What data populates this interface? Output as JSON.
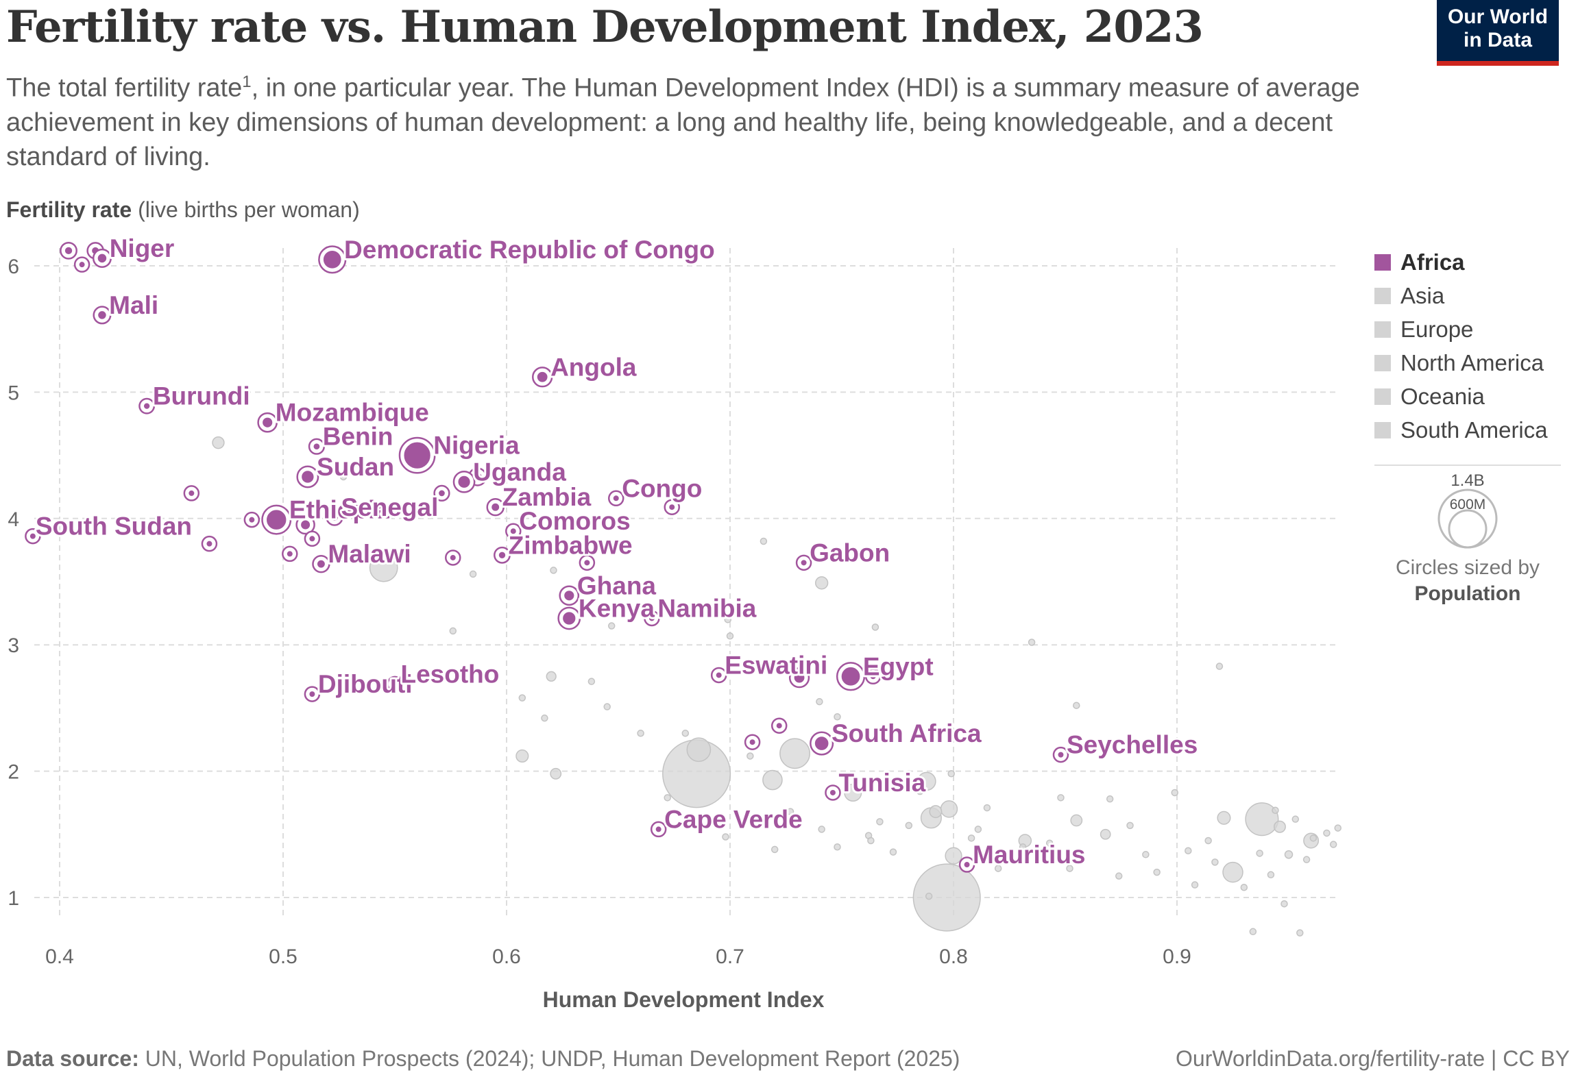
{
  "header": {
    "title": "Fertility rate vs. Human Development Index, 2023",
    "subtitle_before_sup": "The total fertility rate",
    "subtitle_sup": "1",
    "subtitle_after_sup": ", in one particular year. The Human Development Index (HDI) is a summary measure of average achievement in key dimensions of human development: a long and healthy life, being knowledgeable, and a decent standard of living.",
    "logo_line1": "Our World",
    "logo_line2": "in Data"
  },
  "axes": {
    "y_label_bold": "Fertility rate",
    "y_label_rest": " (live births per woman)",
    "x_label": "Human Development Index"
  },
  "legend": {
    "items": [
      {
        "label": "Africa",
        "active": true
      },
      {
        "label": "Asia",
        "active": false
      },
      {
        "label": "Europe",
        "active": false
      },
      {
        "label": "North America",
        "active": false
      },
      {
        "label": "Oceania",
        "active": false
      },
      {
        "label": "South America",
        "active": false
      }
    ],
    "size_large": "1.4B",
    "size_small": "600M",
    "size_caption": "Circles sized by",
    "size_caption_bold": "Population"
  },
  "footer": {
    "source_label": "Data source:",
    "source_text": " UN, World Population Prospects (2024); UNDP, Human Development Report (2025)",
    "credit": "OurWorldinData.org/fertility-rate | CC BY"
  },
  "colors": {
    "africa": "#a2559d",
    "other": "#d5d5d5",
    "grid": "#dddddd"
  },
  "chart_data": {
    "type": "scatter",
    "title": "Fertility rate vs. Human Development Index, 2023",
    "xlabel": "Human Development Index",
    "ylabel": "Fertility rate (live births per woman)",
    "xlim": [
      0.385,
      0.975
    ],
    "ylim": [
      0.7,
      6.25
    ],
    "x_ticks": [
      0.4,
      0.5,
      0.6,
      0.7,
      0.8,
      0.9
    ],
    "x_tick_labels": [
      "0.4",
      "0.5",
      "0.6",
      "0.7",
      "0.8",
      "0.9"
    ],
    "y_ticks": [
      1,
      2,
      3,
      4,
      5,
      6
    ],
    "y_tick_labels": [
      "1",
      "2",
      "3",
      "4",
      "5",
      "6"
    ],
    "africa_labeled": [
      {
        "name": "Niger",
        "hdi": 0.419,
        "fertility": 6.06,
        "pop": 27
      },
      {
        "name": "Mali",
        "hdi": 0.419,
        "fertility": 5.61,
        "pop": 23
      },
      {
        "name": "Democratic Republic of Congo",
        "hdi": 0.522,
        "fertility": 6.05,
        "pop": 105
      },
      {
        "name": "Angola",
        "hdi": 0.616,
        "fertility": 5.12,
        "pop": 37
      },
      {
        "name": "Burundi",
        "hdi": 0.439,
        "fertility": 4.89,
        "pop": 13
      },
      {
        "name": "Mozambique",
        "hdi": 0.493,
        "fertility": 4.76,
        "pop": 34
      },
      {
        "name": "Benin",
        "hdi": 0.515,
        "fertility": 4.57,
        "pop": 14
      },
      {
        "name": "Nigeria",
        "hdi": 0.56,
        "fertility": 4.5,
        "pop": 228
      },
      {
        "name": "Sudan",
        "hdi": 0.511,
        "fertility": 4.33,
        "pop": 50
      },
      {
        "name": "Uganda",
        "hdi": 0.581,
        "fertility": 4.29,
        "pop": 49
      },
      {
        "name": "Zambia",
        "hdi": 0.595,
        "fertility": 4.09,
        "pop": 21
      },
      {
        "name": "Congo",
        "hdi": 0.649,
        "fertility": 4.16,
        "pop": 6
      },
      {
        "name": "Ethiopia",
        "hdi": 0.497,
        "fertility": 3.99,
        "pop": 128
      },
      {
        "name": "South Sudan",
        "hdi": 0.388,
        "fertility": 3.86,
        "pop": 11
      },
      {
        "name": "Senegal",
        "hdi": 0.523,
        "fertility": 4.01,
        "pop": 18
      },
      {
        "name": "Comoros",
        "hdi": 0.603,
        "fertility": 3.9,
        "pop": 1
      },
      {
        "name": "Malawi",
        "hdi": 0.517,
        "fertility": 3.64,
        "pop": 21
      },
      {
        "name": "Zimbabwe",
        "hdi": 0.598,
        "fertility": 3.71,
        "pop": 16
      },
      {
        "name": "Gabon",
        "hdi": 0.733,
        "fertility": 3.65,
        "pop": 2
      },
      {
        "name": "Ghana",
        "hdi": 0.628,
        "fertility": 3.39,
        "pop": 34
      },
      {
        "name": "Kenya",
        "hdi": 0.628,
        "fertility": 3.21,
        "pop": 55
      },
      {
        "name": "Namibia",
        "hdi": 0.665,
        "fertility": 3.21,
        "pop": 3
      },
      {
        "name": "Eswatini",
        "hdi": 0.695,
        "fertility": 2.76,
        "pop": 1
      },
      {
        "name": "Egypt",
        "hdi": 0.754,
        "fertility": 2.75,
        "pop": 114
      },
      {
        "name": "Djibouti",
        "hdi": 0.513,
        "fertility": 2.61,
        "pop": 1
      },
      {
        "name": "Lesotho",
        "hdi": 0.55,
        "fertility": 2.69,
        "pop": 2
      },
      {
        "name": "South Africa",
        "hdi": 0.741,
        "fertility": 2.22,
        "pop": 63
      },
      {
        "name": "Seychelles",
        "hdi": 0.848,
        "fertility": 2.13,
        "pop": 0.1
      },
      {
        "name": "Tunisia",
        "hdi": 0.746,
        "fertility": 1.83,
        "pop": 12
      },
      {
        "name": "Cape Verde",
        "hdi": 0.668,
        "fertility": 1.54,
        "pop": 0.5
      },
      {
        "name": "Mauritius",
        "hdi": 0.806,
        "fertility": 1.26,
        "pop": 1.3
      }
    ],
    "africa_unlabeled": [
      {
        "hdi": 0.404,
        "fertility": 6.12,
        "pop": 19
      },
      {
        "hdi": 0.416,
        "fertility": 6.12,
        "pop": 18
      },
      {
        "hdi": 0.41,
        "fertility": 6.01,
        "pop": 8
      },
      {
        "hdi": 0.459,
        "fertility": 4.2,
        "pop": 6
      },
      {
        "hdi": 0.467,
        "fertility": 3.8,
        "pop": 5
      },
      {
        "hdi": 0.486,
        "fertility": 3.99,
        "pop": 9
      },
      {
        "hdi": 0.503,
        "fertility": 3.72,
        "pop": 3
      },
      {
        "hdi": 0.51,
        "fertility": 3.95,
        "pop": 29
      },
      {
        "hdi": 0.513,
        "fertility": 3.84,
        "pop": 2
      },
      {
        "hdi": 0.571,
        "fertility": 4.2,
        "pop": 14
      },
      {
        "hdi": 0.576,
        "fertility": 3.69,
        "pop": 9
      },
      {
        "hdi": 0.587,
        "fertility": 4.33,
        "pop": 25
      },
      {
        "hdi": 0.636,
        "fertility": 3.65,
        "pop": 1
      },
      {
        "hdi": 0.674,
        "fertility": 4.09,
        "pop": 1
      },
      {
        "hdi": 0.71,
        "fertility": 2.23,
        "pop": 3
      },
      {
        "hdi": 0.722,
        "fertility": 2.36,
        "pop": 2
      },
      {
        "hdi": 0.731,
        "fertility": 2.74,
        "pop": 37
      },
      {
        "hdi": 0.764,
        "fertility": 2.75,
        "pop": 7
      }
    ],
    "other_regions": [
      {
        "hdi": 0.685,
        "fertility": 1.98,
        "pop": 1438
      },
      {
        "hdi": 0.797,
        "fertility": 1.0,
        "pop": 1410
      },
      {
        "hdi": 0.545,
        "fertility": 3.61,
        "pop": 240
      },
      {
        "hdi": 0.729,
        "fertility": 2.14,
        "pop": 278
      },
      {
        "hdi": 0.686,
        "fertility": 2.17,
        "pop": 173
      },
      {
        "hdi": 0.719,
        "fertility": 1.93,
        "pop": 117
      },
      {
        "hdi": 0.79,
        "fertility": 1.63,
        "pop": 130
      },
      {
        "hdi": 0.788,
        "fertility": 1.92,
        "pop": 100
      },
      {
        "hdi": 0.798,
        "fertility": 1.7,
        "pop": 85
      },
      {
        "hdi": 0.792,
        "fertility": 1.68,
        "pop": 45
      },
      {
        "hdi": 0.938,
        "fertility": 1.62,
        "pop": 335
      },
      {
        "hdi": 0.925,
        "fertility": 1.2,
        "pop": 124
      },
      {
        "hdi": 0.921,
        "fertility": 1.63,
        "pop": 51
      },
      {
        "hdi": 0.832,
        "fertility": 1.45,
        "pop": 48
      },
      {
        "hdi": 0.855,
        "fertility": 1.61,
        "pop": 39
      },
      {
        "hdi": 0.868,
        "fertility": 1.5,
        "pop": 30
      },
      {
        "hdi": 0.946,
        "fertility": 1.56,
        "pop": 40
      },
      {
        "hdi": 0.96,
        "fertility": 1.45,
        "pop": 68
      },
      {
        "hdi": 0.95,
        "fertility": 1.34,
        "pop": 18
      },
      {
        "hdi": 0.937,
        "fertility": 1.35,
        "pop": 12
      },
      {
        "hdi": 0.622,
        "fertility": 1.98,
        "pop": 35
      },
      {
        "hdi": 0.607,
        "fertility": 2.12,
        "pop": 46
      },
      {
        "hdi": 0.755,
        "fertility": 1.83,
        "pop": 90
      },
      {
        "hdi": 0.8,
        "fertility": 1.33,
        "pop": 83
      },
      {
        "hdi": 0.62,
        "fertility": 2.75,
        "pop": 28
      },
      {
        "hdi": 0.741,
        "fertility": 3.49,
        "pop": 47
      },
      {
        "hdi": 0.835,
        "fertility": 3.02,
        "pop": 10
      },
      {
        "hdi": 0.919,
        "fertility": 2.83,
        "pop": 9
      },
      {
        "hdi": 0.765,
        "fertility": 3.14,
        "pop": 5
      },
      {
        "hdi": 0.855,
        "fertility": 2.52,
        "pop": 4
      },
      {
        "hdi": 0.471,
        "fertility": 4.6,
        "pop": 42
      },
      {
        "hdi": 0.527,
        "fertility": 4.33,
        "pop": 2
      },
      {
        "hdi": 0.699,
        "fertility": 3.2,
        "pop": 12
      },
      {
        "hdi": 0.715,
        "fertility": 3.82,
        "pop": 2
      },
      {
        "hdi": 0.621,
        "fertility": 3.59,
        "pop": 1
      },
      {
        "hdi": 0.585,
        "fertility": 3.56,
        "pop": 1
      },
      {
        "hdi": 0.576,
        "fertility": 3.11,
        "pop": 1
      },
      {
        "hdi": 0.647,
        "fertility": 3.15,
        "pop": 1
      },
      {
        "hdi": 0.638,
        "fertility": 2.71,
        "pop": 2
      },
      {
        "hdi": 0.607,
        "fertility": 2.58,
        "pop": 3
      },
      {
        "hdi": 0.617,
        "fertility": 2.42,
        "pop": 6
      },
      {
        "hdi": 0.66,
        "fertility": 2.3,
        "pop": 3
      },
      {
        "hdi": 0.68,
        "fertility": 2.3,
        "pop": 4
      },
      {
        "hdi": 0.645,
        "fertility": 2.51,
        "pop": 2
      },
      {
        "hdi": 0.7,
        "fertility": 3.07,
        "pop": 2
      },
      {
        "hdi": 0.74,
        "fertility": 2.55,
        "pop": 2
      },
      {
        "hdi": 0.748,
        "fertility": 2.43,
        "pop": 1
      },
      {
        "hdi": 0.76,
        "fertility": 2.28,
        "pop": 2
      },
      {
        "hdi": 0.709,
        "fertility": 2.12,
        "pop": 3
      },
      {
        "hdi": 0.698,
        "fertility": 1.48,
        "pop": 3
      },
      {
        "hdi": 0.72,
        "fertility": 1.38,
        "pop": 3
      },
      {
        "hdi": 0.741,
        "fertility": 1.54,
        "pop": 4
      },
      {
        "hdi": 0.748,
        "fertility": 1.4,
        "pop": 2
      },
      {
        "hdi": 0.762,
        "fertility": 1.49,
        "pop": 7
      },
      {
        "hdi": 0.763,
        "fertility": 1.45,
        "pop": 2
      },
      {
        "hdi": 0.767,
        "fertility": 1.6,
        "pop": 2
      },
      {
        "hdi": 0.785,
        "fertility": 1.84,
        "pop": 3
      },
      {
        "hdi": 0.799,
        "fertility": 1.98,
        "pop": 10
      },
      {
        "hdi": 0.811,
        "fertility": 1.54,
        "pop": 5
      },
      {
        "hdi": 0.815,
        "fertility": 1.71,
        "pop": 4
      },
      {
        "hdi": 0.82,
        "fertility": 1.23,
        "pop": 3
      },
      {
        "hdi": 0.843,
        "fertility": 1.43,
        "pop": 5
      },
      {
        "hdi": 0.848,
        "fertility": 1.79,
        "pop": 2
      },
      {
        "hdi": 0.852,
        "fertility": 1.23,
        "pop": 2
      },
      {
        "hdi": 0.87,
        "fertility": 1.78,
        "pop": 2
      },
      {
        "hdi": 0.874,
        "fertility": 1.17,
        "pop": 3
      },
      {
        "hdi": 0.879,
        "fertility": 1.57,
        "pop": 2
      },
      {
        "hdi": 0.886,
        "fertility": 1.34,
        "pop": 2
      },
      {
        "hdi": 0.891,
        "fertility": 1.2,
        "pop": 2
      },
      {
        "hdi": 0.899,
        "fertility": 1.83,
        "pop": 2
      },
      {
        "hdi": 0.905,
        "fertility": 1.37,
        "pop": 2
      },
      {
        "hdi": 0.908,
        "fertility": 1.1,
        "pop": 2
      },
      {
        "hdi": 0.914,
        "fertility": 1.45,
        "pop": 2
      },
      {
        "hdi": 0.917,
        "fertility": 1.28,
        "pop": 3
      },
      {
        "hdi": 0.93,
        "fertility": 1.08,
        "pop": 2
      },
      {
        "hdi": 0.934,
        "fertility": 0.73,
        "pop": 5
      },
      {
        "hdi": 0.955,
        "fertility": 0.72,
        "pop": 1
      },
      {
        "hdi": 0.942,
        "fertility": 1.18,
        "pop": 2
      },
      {
        "hdi": 0.948,
        "fertility": 0.95,
        "pop": 1
      },
      {
        "hdi": 0.953,
        "fertility": 1.62,
        "pop": 2
      },
      {
        "hdi": 0.961,
        "fertility": 1.47,
        "pop": 5
      },
      {
        "hdi": 0.967,
        "fertility": 1.51,
        "pop": 1
      },
      {
        "hdi": 0.97,
        "fertility": 1.42,
        "pop": 2
      },
      {
        "hdi": 0.972,
        "fertility": 1.55,
        "pop": 1
      },
      {
        "hdi": 0.958,
        "fertility": 1.3,
        "pop": 2
      },
      {
        "hdi": 0.944,
        "fertility": 1.69,
        "pop": 1
      },
      {
        "hdi": 0.831,
        "fertility": 1.4,
        "pop": 2
      },
      {
        "hdi": 0.808,
        "fertility": 1.47,
        "pop": 2
      },
      {
        "hdi": 0.78,
        "fertility": 1.57,
        "pop": 2
      },
      {
        "hdi": 0.773,
        "fertility": 1.36,
        "pop": 1
      },
      {
        "hdi": 0.727,
        "fertility": 1.68,
        "pop": 2
      },
      {
        "hdi": 0.672,
        "fertility": 1.79,
        "pop": 2
      },
      {
        "hdi": 0.789,
        "fertility": 1.01,
        "pop": 2
      }
    ]
  }
}
